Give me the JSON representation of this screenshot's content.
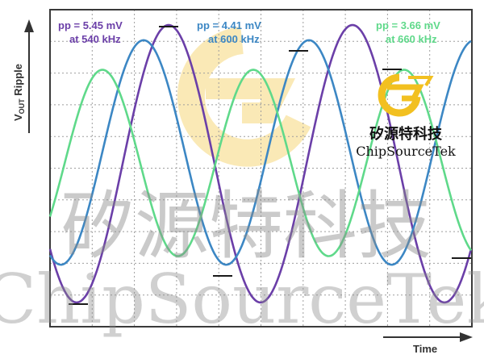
{
  "chart_data": {
    "type": "line",
    "title": "",
    "xlabel": "Time",
    "ylabel": "V_OUT Ripple",
    "ylabel_main": "V",
    "ylabel_sub": "OUT",
    "ylabel_rest": " Ripple",
    "grid": true,
    "x_divisions": 10,
    "y_divisions": 10,
    "series": [
      {
        "name": "pp = 5.45 mV at 540 kHz",
        "label_line1": "pp = 5.45 mV",
        "label_line2": "at 540 kHz",
        "peak_to_peak_mV": 5.45,
        "frequency_kHz": 540,
        "color": "#6B3FA8"
      },
      {
        "name": "pp = 4.41 mV at 600 kHz",
        "label_line1": "pp = 4.41 mV",
        "label_line2": "at 600 kHz",
        "peak_to_peak_mV": 4.41,
        "frequency_kHz": 600,
        "color": "#3C87C4"
      },
      {
        "name": "pp = 3.66 mV at 660 kHz",
        "label_line1": "pp = 3.66 mV",
        "label_line2": "at 660 kHz",
        "peak_to_peak_mV": 3.66,
        "frequency_kHz": 660,
        "color": "#5FD98A"
      }
    ],
    "legend_placement": "top"
  },
  "watermark": {
    "cn_text": "矽源特科技",
    "en_text": "ChipSourceTek",
    "logo_cn": "矽源特科技",
    "logo_en": "ChipSourceTek"
  },
  "colors": {
    "grid": "#9E9E9E",
    "frame": "#3A3A3A",
    "axis_text": "#333333",
    "markers": "#1A1A1A"
  }
}
